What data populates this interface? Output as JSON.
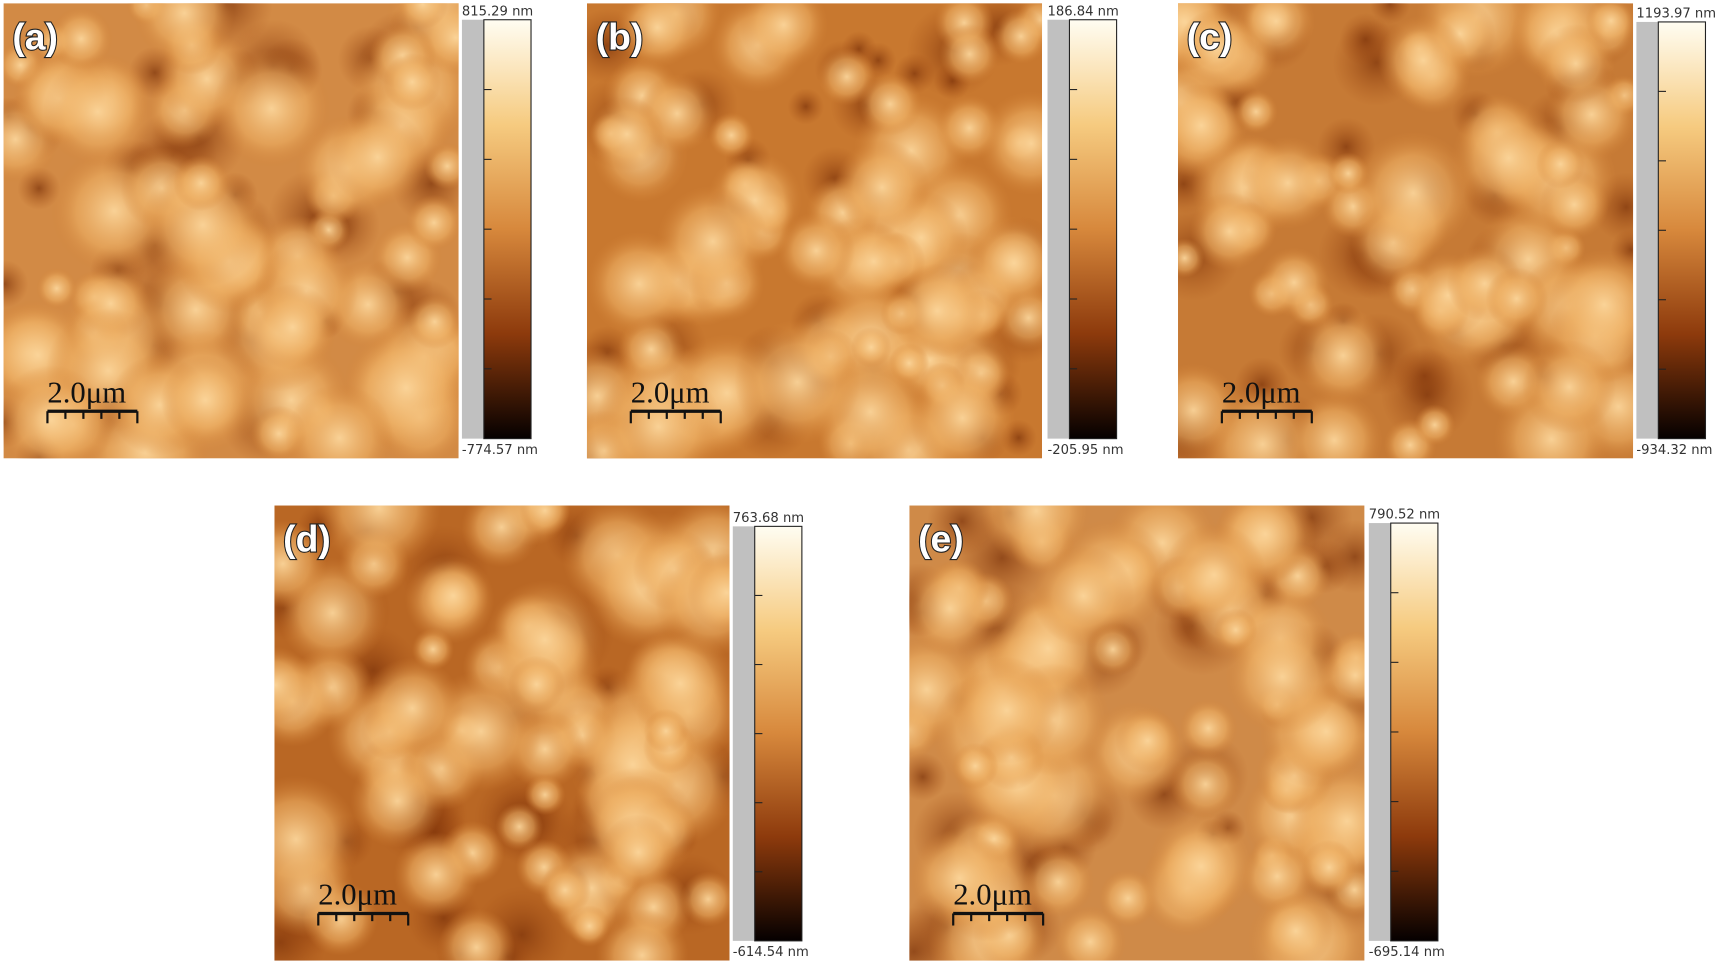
{
  "panels": [
    {
      "label": "(a)",
      "max": "815.29 nm",
      "min": "-774.57 nm",
      "scale_bar": "2.0μm"
    },
    {
      "label": "(b)",
      "max": "186.84 nm",
      "min": "-205.95 nm",
      "scale_bar": "2.0μm"
    },
    {
      "label": "(c)",
      "max": "1193.97 nm",
      "min": "-934.32 nm",
      "scale_bar": "2.0μm"
    },
    {
      "label": "(d)",
      "max": "763.68 nm",
      "min": "-614.54 nm",
      "scale_bar": "2.0μm"
    },
    {
      "label": "(e)",
      "max": "790.52 nm",
      "min": "-695.14 nm",
      "scale_bar": "2.0μm"
    }
  ]
}
